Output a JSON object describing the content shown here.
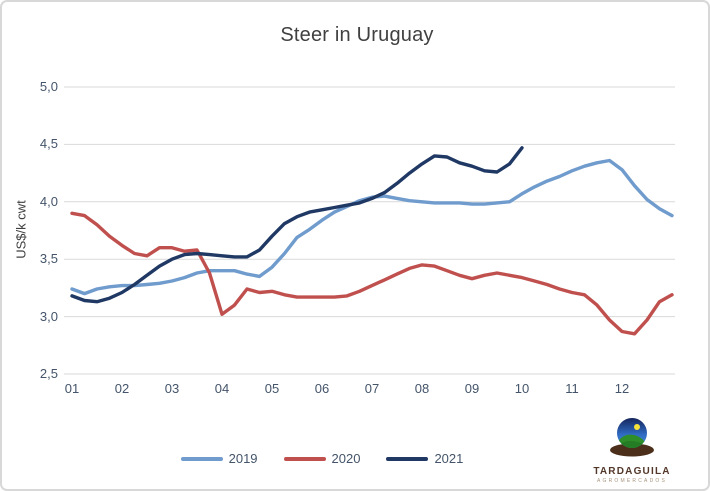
{
  "chart_data": {
    "type": "line",
    "title": "Steer in Uruguay",
    "ylabel": "US$/k cwt",
    "xlabel": "",
    "ylim": [
      2.5,
      5.0
    ],
    "y_ticks": [
      "5,0",
      "4,5",
      "4,0",
      "3,5",
      "3,0",
      "2,5"
    ],
    "y_tick_values": [
      5.0,
      4.5,
      4.0,
      3.5,
      3.0,
      2.5
    ],
    "x_ticks": [
      "01",
      "02",
      "03",
      "04",
      "05",
      "06",
      "07",
      "08",
      "09",
      "10",
      "11",
      "12"
    ],
    "x_start_month": 1,
    "x_step_months": 0.25,
    "grid": true,
    "legend_position": "bottom",
    "colors": {
      "grid": "#d9d9d9",
      "axis_text": "#44546a",
      "title_text": "#404040"
    },
    "series": [
      {
        "name": "2019",
        "color": "#6f9bcd",
        "values": [
          3.24,
          3.2,
          3.24,
          3.26,
          3.27,
          3.27,
          3.28,
          3.29,
          3.31,
          3.34,
          3.38,
          3.4,
          3.4,
          3.4,
          3.37,
          3.35,
          3.43,
          3.55,
          3.69,
          3.76,
          3.84,
          3.91,
          3.96,
          4.01,
          4.04,
          4.05,
          4.03,
          4.01,
          4.0,
          3.99,
          3.99,
          3.99,
          3.98,
          3.98,
          3.99,
          4.0,
          4.07,
          4.13,
          4.18,
          4.22,
          4.27,
          4.31,
          4.34,
          4.36,
          4.28,
          4.14,
          4.02,
          3.94,
          3.88
        ]
      },
      {
        "name": "2020",
        "color": "#c0504d",
        "values": [
          3.9,
          3.88,
          3.8,
          3.7,
          3.62,
          3.55,
          3.53,
          3.6,
          3.6,
          3.57,
          3.58,
          3.38,
          3.02,
          3.1,
          3.24,
          3.21,
          3.22,
          3.19,
          3.17,
          3.17,
          3.17,
          3.17,
          3.18,
          3.22,
          3.27,
          3.32,
          3.37,
          3.42,
          3.45,
          3.44,
          3.4,
          3.36,
          3.33,
          3.36,
          3.38,
          3.36,
          3.34,
          3.31,
          3.28,
          3.24,
          3.21,
          3.19,
          3.1,
          2.97,
          2.87,
          2.85,
          2.97,
          3.13,
          3.19
        ]
      },
      {
        "name": "2021",
        "color": "#1f3864",
        "values": [
          3.18,
          3.14,
          3.13,
          3.16,
          3.21,
          3.28,
          3.36,
          3.44,
          3.5,
          3.54,
          3.55,
          3.54,
          3.53,
          3.52,
          3.52,
          3.58,
          3.7,
          3.81,
          3.87,
          3.91,
          3.93,
          3.95,
          3.97,
          3.99,
          4.03,
          4.08,
          4.16,
          4.25,
          4.33,
          4.4,
          4.39,
          4.34,
          4.31,
          4.27,
          4.26,
          4.33,
          4.47
        ]
      }
    ]
  },
  "branding": {
    "logo_text": "TARDAGUILA",
    "logo_subtext": "AGROMERCADOS"
  }
}
